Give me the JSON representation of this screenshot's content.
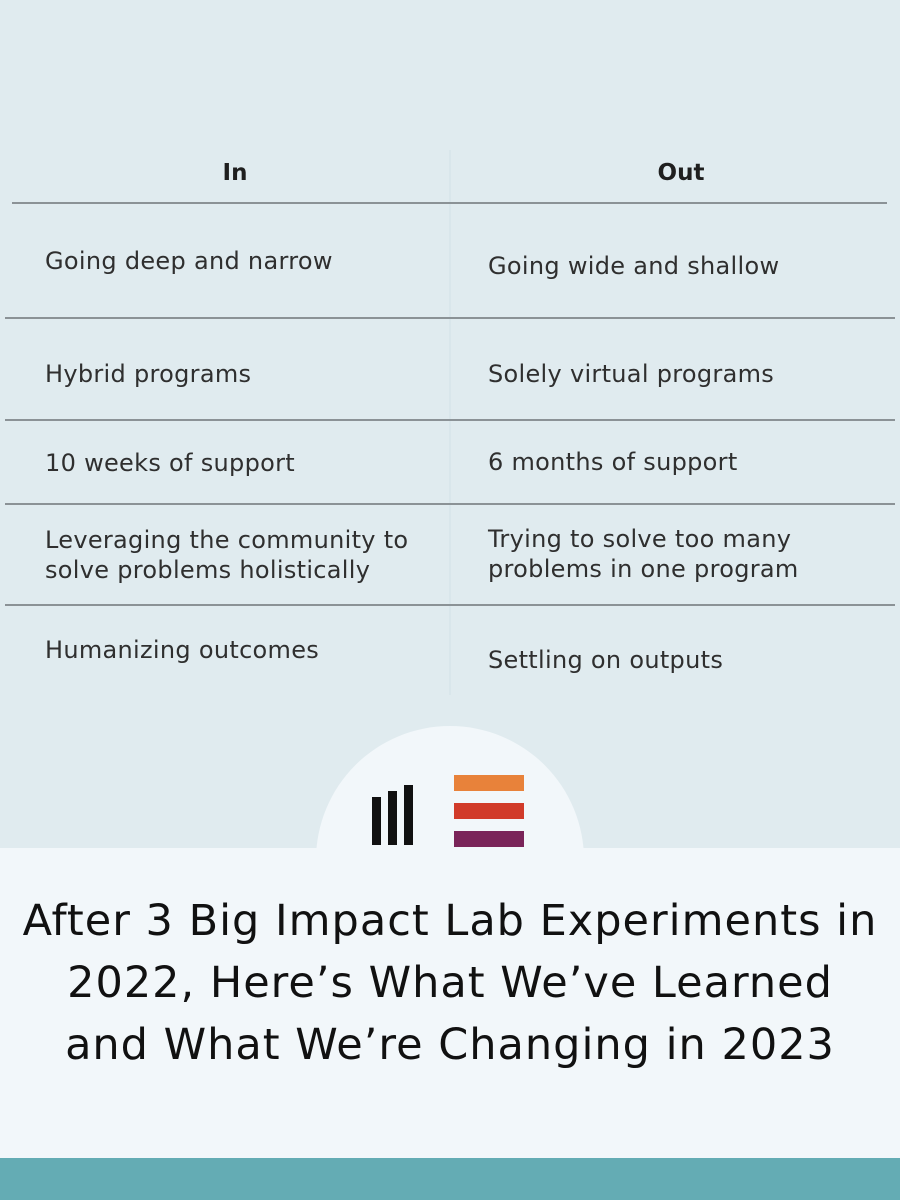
{
  "table": {
    "header_in": "In",
    "header_out": "Out",
    "rows": [
      {
        "in": "Going deep and narrow",
        "out": "Going wide and shallow"
      },
      {
        "in": "Hybrid programs",
        "out": "Solely virtual programs"
      },
      {
        "in": "10 weeks of support",
        "out": "6 months of support"
      },
      {
        "in": "Leveraging the community to solve problems holistically",
        "out": "Trying to solve too many problems in one program"
      },
      {
        "in": "Humanizing outcomes",
        "out": "Settling on outputs"
      }
    ]
  },
  "headline": "After 3 Big Impact Lab Experiments in 2022, Here’s What We’ve Learned and What We’re Changing in 2023",
  "colors": {
    "panel_bg": "#e0ebef",
    "page_bg": "#f2f7fa",
    "footer_bar": "#64acb4",
    "logo_black": "#111111",
    "logo_orange": "#e8823a",
    "logo_red": "#d13b2a",
    "logo_purple": "#7a2459"
  }
}
